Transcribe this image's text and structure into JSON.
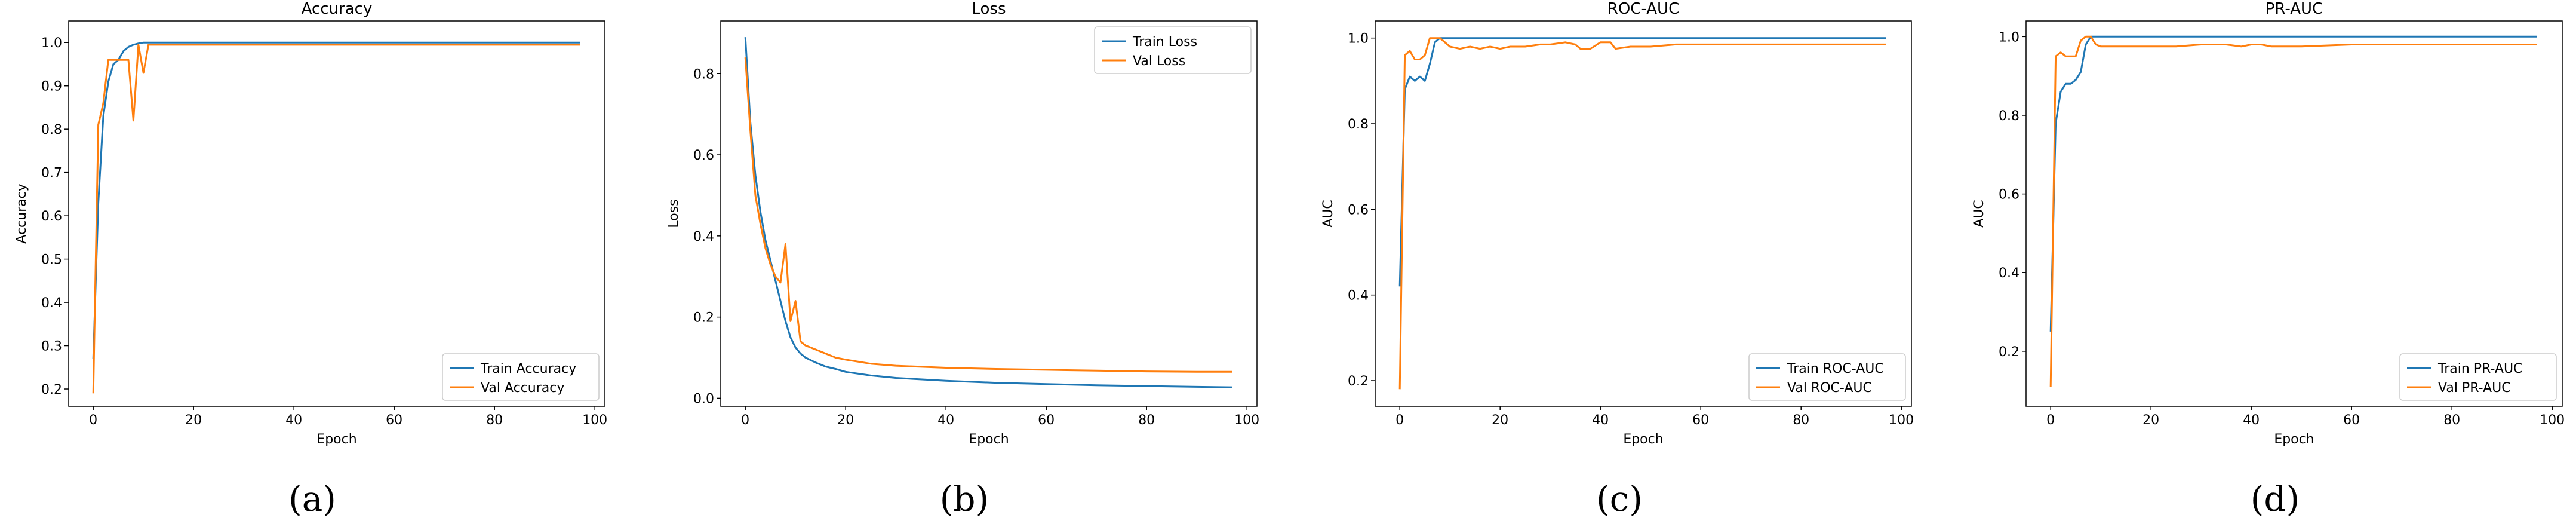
{
  "figure": {
    "panels": [
      "(a)",
      "(b)",
      "(c)",
      "(d)"
    ]
  },
  "colors": {
    "train": "#1f77b4",
    "val": "#ff7f0e",
    "axis": "#000000"
  },
  "chart_data": [
    {
      "type": "line",
      "title": "Accuracy",
      "xlabel": "Epoch",
      "ylabel": "Accuracy",
      "xlim": [
        -4.9,
        102
      ],
      "ylim": [
        0.16,
        1.05
      ],
      "xticks": [
        0,
        20,
        40,
        60,
        80,
        100
      ],
      "yticks": [
        0.2,
        0.3,
        0.4,
        0.5,
        0.6,
        0.7,
        0.8,
        0.9,
        1.0
      ],
      "ytick_labels": [
        "0.2",
        "0.3",
        "0.4",
        "0.5",
        "0.6",
        "0.7",
        "0.8",
        "0.9",
        "1.0"
      ],
      "legend_position": "bottom-right",
      "series": [
        {
          "name": "Train Accuracy",
          "color": "#1f77b4",
          "points": [
            [
              0,
              0.27
            ],
            [
              1,
              0.63
            ],
            [
              2,
              0.83
            ],
            [
              3,
              0.91
            ],
            [
              4,
              0.95
            ],
            [
              5,
              0.96
            ],
            [
              6,
              0.98
            ],
            [
              7,
              0.99
            ],
            [
              8,
              0.995
            ],
            [
              9,
              0.998
            ],
            [
              10,
              1.0
            ],
            [
              97,
              1.0
            ]
          ]
        },
        {
          "name": "Val Accuracy",
          "color": "#ff7f0e",
          "points": [
            [
              0,
              0.19
            ],
            [
              1,
              0.81
            ],
            [
              2,
              0.86
            ],
            [
              3,
              0.96
            ],
            [
              4,
              0.96
            ],
            [
              5,
              0.96
            ],
            [
              6,
              0.96
            ],
            [
              7,
              0.96
            ],
            [
              8,
              0.82
            ],
            [
              9,
              0.995
            ],
            [
              10,
              0.93
            ],
            [
              11,
              0.995
            ],
            [
              12,
              0.995
            ],
            [
              97,
              0.995
            ]
          ]
        }
      ]
    },
    {
      "type": "line",
      "title": "Loss",
      "xlabel": "Epoch",
      "ylabel": "Loss",
      "xlim": [
        -4.9,
        102
      ],
      "ylim": [
        -0.02,
        0.93
      ],
      "xticks": [
        0,
        20,
        40,
        60,
        80,
        100
      ],
      "yticks": [
        0.0,
        0.2,
        0.4,
        0.6,
        0.8
      ],
      "ytick_labels": [
        "0.0",
        "0.2",
        "0.4",
        "0.6",
        "0.8"
      ],
      "legend_position": "top-right",
      "series": [
        {
          "name": "Train Loss",
          "color": "#1f77b4",
          "points": [
            [
              0,
              0.89
            ],
            [
              1,
              0.68
            ],
            [
              2,
              0.55
            ],
            [
              3,
              0.46
            ],
            [
              4,
              0.39
            ],
            [
              5,
              0.34
            ],
            [
              6,
              0.29
            ],
            [
              7,
              0.24
            ],
            [
              8,
              0.19
            ],
            [
              9,
              0.15
            ],
            [
              10,
              0.125
            ],
            [
              11,
              0.11
            ],
            [
              12,
              0.1
            ],
            [
              14,
              0.088
            ],
            [
              16,
              0.078
            ],
            [
              18,
              0.072
            ],
            [
              20,
              0.065
            ],
            [
              25,
              0.056
            ],
            [
              30,
              0.05
            ],
            [
              40,
              0.043
            ],
            [
              50,
              0.038
            ],
            [
              60,
              0.035
            ],
            [
              70,
              0.032
            ],
            [
              80,
              0.03
            ],
            [
              90,
              0.028
            ],
            [
              97,
              0.027
            ]
          ]
        },
        {
          "name": "Val Loss",
          "color": "#ff7f0e",
          "points": [
            [
              0,
              0.84
            ],
            [
              1,
              0.66
            ],
            [
              2,
              0.5
            ],
            [
              3,
              0.43
            ],
            [
              4,
              0.37
            ],
            [
              5,
              0.33
            ],
            [
              6,
              0.3
            ],
            [
              7,
              0.285
            ],
            [
              8,
              0.38
            ],
            [
              9,
              0.19
            ],
            [
              10,
              0.24
            ],
            [
              11,
              0.14
            ],
            [
              12,
              0.13
            ],
            [
              14,
              0.12
            ],
            [
              16,
              0.11
            ],
            [
              18,
              0.1
            ],
            [
              20,
              0.095
            ],
            [
              25,
              0.085
            ],
            [
              30,
              0.08
            ],
            [
              40,
              0.075
            ],
            [
              50,
              0.072
            ],
            [
              60,
              0.07
            ],
            [
              70,
              0.068
            ],
            [
              80,
              0.066
            ],
            [
              90,
              0.065
            ],
            [
              97,
              0.065
            ]
          ]
        }
      ]
    },
    {
      "type": "line",
      "title": "ROC-AUC",
      "xlabel": "Epoch",
      "ylabel": "AUC",
      "xlim": [
        -4.9,
        102
      ],
      "ylim": [
        0.14,
        1.04
      ],
      "xticks": [
        0,
        20,
        40,
        60,
        80,
        100
      ],
      "yticks": [
        0.2,
        0.4,
        0.6,
        0.8,
        1.0
      ],
      "ytick_labels": [
        "0.2",
        "0.4",
        "0.6",
        "0.8",
        "1.0"
      ],
      "legend_position": "bottom-right",
      "series": [
        {
          "name": "Train ROC-AUC",
          "color": "#1f77b4",
          "points": [
            [
              0,
              0.42
            ],
            [
              1,
              0.88
            ],
            [
              2,
              0.91
            ],
            [
              3,
              0.9
            ],
            [
              4,
              0.91
            ],
            [
              5,
              0.9
            ],
            [
              6,
              0.94
            ],
            [
              7,
              0.99
            ],
            [
              8,
              1.0
            ],
            [
              97,
              1.0
            ]
          ]
        },
        {
          "name": "Val ROC-AUC",
          "color": "#ff7f0e",
          "points": [
            [
              0,
              0.18
            ],
            [
              1,
              0.96
            ],
            [
              2,
              0.97
            ],
            [
              3,
              0.95
            ],
            [
              4,
              0.95
            ],
            [
              5,
              0.96
            ],
            [
              6,
              1.0
            ],
            [
              7,
              1.0
            ],
            [
              8,
              1.0
            ],
            [
              9,
              0.99
            ],
            [
              10,
              0.98
            ],
            [
              12,
              0.975
            ],
            [
              14,
              0.98
            ],
            [
              16,
              0.975
            ],
            [
              18,
              0.98
            ],
            [
              20,
              0.975
            ],
            [
              22,
              0.98
            ],
            [
              25,
              0.98
            ],
            [
              28,
              0.985
            ],
            [
              30,
              0.985
            ],
            [
              33,
              0.99
            ],
            [
              35,
              0.985
            ],
            [
              36,
              0.975
            ],
            [
              38,
              0.975
            ],
            [
              40,
              0.99
            ],
            [
              42,
              0.99
            ],
            [
              43,
              0.975
            ],
            [
              46,
              0.98
            ],
            [
              50,
              0.98
            ],
            [
              55,
              0.985
            ],
            [
              60,
              0.985
            ],
            [
              70,
              0.985
            ],
            [
              80,
              0.985
            ],
            [
              90,
              0.985
            ],
            [
              97,
              0.985
            ]
          ]
        }
      ]
    },
    {
      "type": "line",
      "title": "PR-AUC",
      "xlabel": "Epoch",
      "ylabel": "AUC",
      "xlim": [
        -4.9,
        102
      ],
      "ylim": [
        0.06,
        1.04
      ],
      "xticks": [
        0,
        20,
        40,
        60,
        80,
        100
      ],
      "yticks": [
        0.2,
        0.4,
        0.6,
        0.8,
        1.0
      ],
      "ytick_labels": [
        "0.2",
        "0.4",
        "0.6",
        "0.8",
        "1.0"
      ],
      "legend_position": "bottom-right",
      "series": [
        {
          "name": "Train PR-AUC",
          "color": "#1f77b4",
          "points": [
            [
              0,
              0.25
            ],
            [
              1,
              0.78
            ],
            [
              2,
              0.86
            ],
            [
              3,
              0.88
            ],
            [
              4,
              0.88
            ],
            [
              5,
              0.89
            ],
            [
              6,
              0.91
            ],
            [
              7,
              0.98
            ],
            [
              8,
              1.0
            ],
            [
              97,
              1.0
            ]
          ]
        },
        {
          "name": "Val PR-AUC",
          "color": "#ff7f0e",
          "points": [
            [
              0,
              0.11
            ],
            [
              1,
              0.95
            ],
            [
              2,
              0.96
            ],
            [
              3,
              0.95
            ],
            [
              4,
              0.95
            ],
            [
              5,
              0.95
            ],
            [
              6,
              0.99
            ],
            [
              7,
              1.0
            ],
            [
              8,
              1.0
            ],
            [
              9,
              0.98
            ],
            [
              10,
              0.975
            ],
            [
              15,
              0.975
            ],
            [
              20,
              0.975
            ],
            [
              25,
              0.975
            ],
            [
              30,
              0.98
            ],
            [
              35,
              0.98
            ],
            [
              38,
              0.975
            ],
            [
              40,
              0.98
            ],
            [
              42,
              0.98
            ],
            [
              44,
              0.975
            ],
            [
              50,
              0.975
            ],
            [
              60,
              0.98
            ],
            [
              70,
              0.98
            ],
            [
              80,
              0.98
            ],
            [
              90,
              0.98
            ],
            [
              97,
              0.98
            ]
          ]
        }
      ]
    }
  ]
}
